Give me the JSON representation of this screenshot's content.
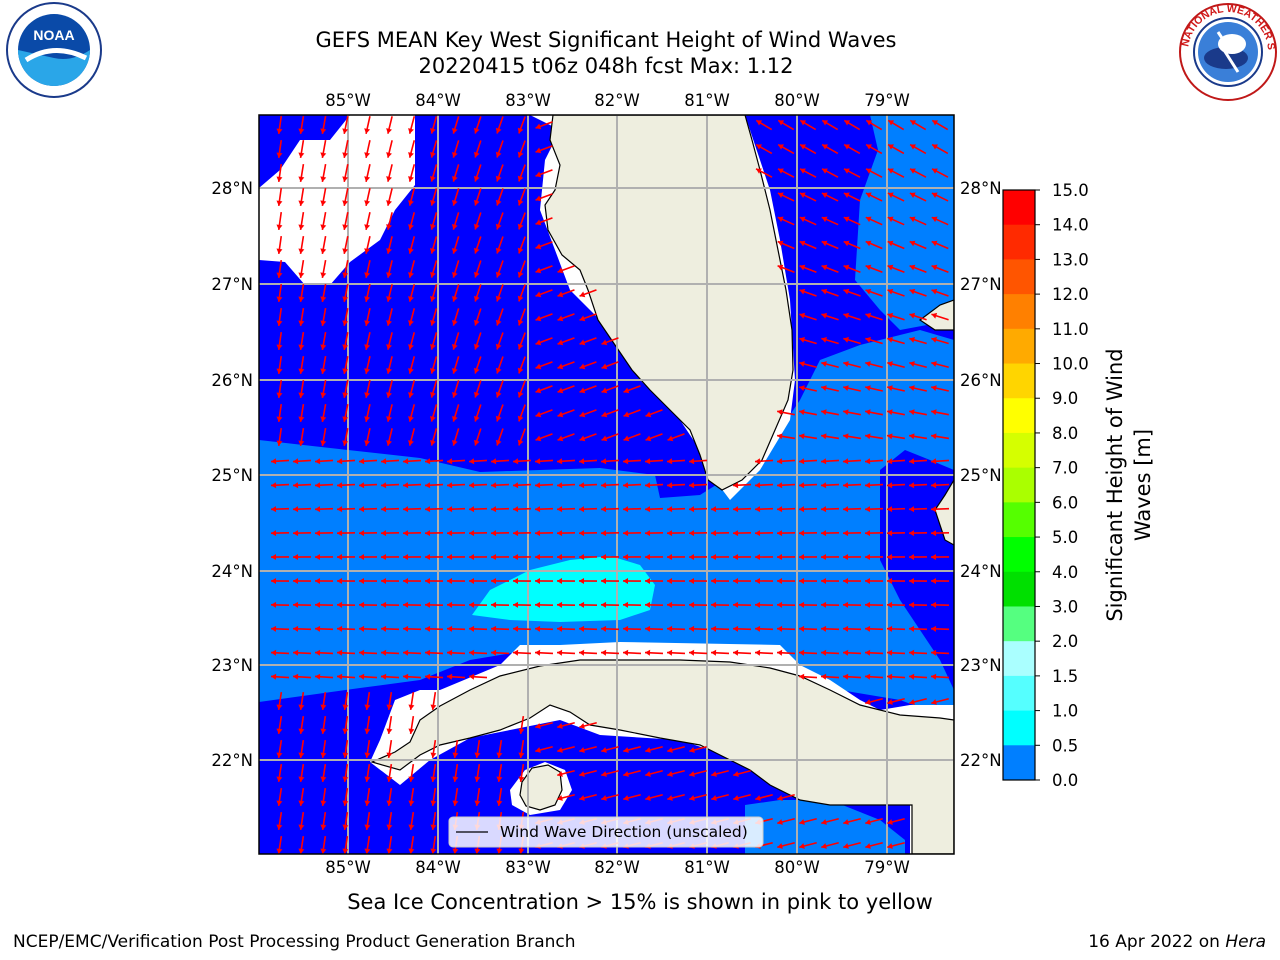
{
  "header": {
    "title_line1": "GEFS MEAN Key West Significant Height of Wind Waves",
    "title_line2": "20220415 t06z 048h fcst   Max: 1.12"
  },
  "logos": {
    "left": "noaa-logo",
    "right": "nws-logo",
    "left_text": "NOAA",
    "right_text": "NATIONAL WEATHER SERVICE"
  },
  "map": {
    "lon_labels": [
      "85°W",
      "84°W",
      "83°W",
      "82°W",
      "81°W",
      "80°W",
      "79°W"
    ],
    "lat_labels": [
      "28°N",
      "27°N",
      "26°N",
      "25°N",
      "24°N",
      "23°N",
      "22°N"
    ],
    "legend_label": "Wind Wave Direction (unscaled)",
    "colors": {
      "land": "#eeeedf",
      "level_0": "#0000ff",
      "level_0_5": "#007fff",
      "level_1_0": "#00ffff",
      "arrow": "#ff0000",
      "grid": "#b0b0b0"
    }
  },
  "colorbar": {
    "label_line1": "Significant Height of Wind",
    "label_line2": "Waves [m]",
    "ticks": [
      "15.0",
      "14.0",
      "13.0",
      "12.0",
      "11.0",
      "10.0",
      "9.0",
      "8.0",
      "7.0",
      "6.0",
      "5.0",
      "4.0",
      "3.0",
      "2.0",
      "1.5",
      "1.0",
      "0.5",
      "0.0"
    ],
    "colors": [
      "#ff0000",
      "#ff2a00",
      "#ff5500",
      "#ff8000",
      "#ffaa00",
      "#ffd500",
      "#ffff00",
      "#d5ff00",
      "#aaff00",
      "#55ff00",
      "#00ff00",
      "#00e000",
      "#55ff80",
      "#aaffff",
      "#55ffff",
      "#00ffff",
      "#007fff",
      "#0000ff"
    ]
  },
  "footer": {
    "ice_note": "Sea Ice Concentration > 15% is shown in pink to yellow",
    "left": "NCEP/EMC/Verification Post Processing Product Generation Branch",
    "right_date": "16 Apr 2022 on ",
    "right_host": "Hera"
  }
}
